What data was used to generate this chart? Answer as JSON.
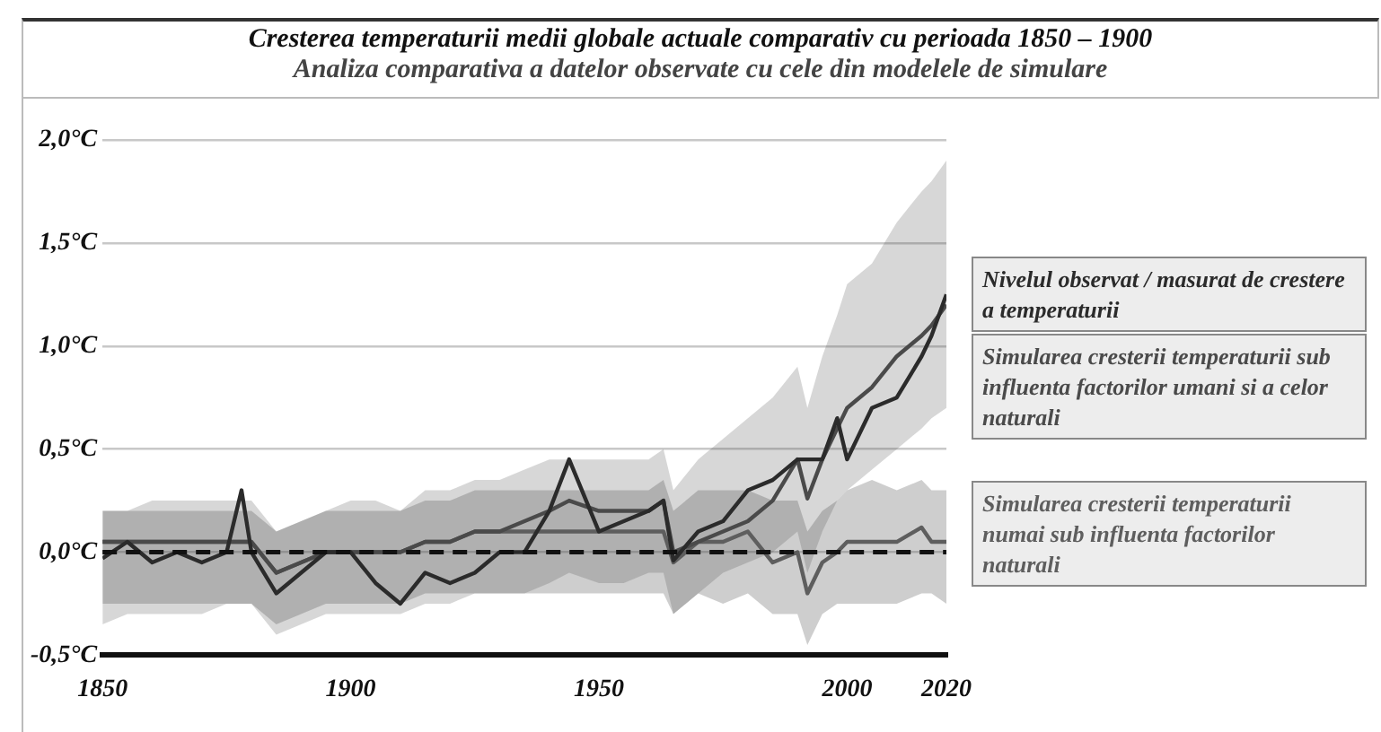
{
  "chart_data": {
    "type": "line",
    "title": "Cresterea temperaturii medii globale actuale comparativ cu perioada 1850 – 1900",
    "subtitle": "Analiza comparativa a datelor observate cu cele din modelele de simulare",
    "x": [
      1850,
      1855,
      1860,
      1865,
      1870,
      1875,
      1878,
      1880,
      1885,
      1890,
      1895,
      1900,
      1905,
      1910,
      1915,
      1920,
      1925,
      1930,
      1935,
      1940,
      1944,
      1950,
      1955,
      1960,
      1963,
      1965,
      1970,
      1975,
      1980,
      1985,
      1990,
      1992,
      1995,
      1998,
      2000,
      2005,
      2010,
      2015,
      2017,
      2020
    ],
    "series": [
      {
        "name": "Nivelul observat / masurat de crestere a temperaturii",
        "color": "#2b2b2b",
        "values": [
          -0.03,
          0.05,
          -0.05,
          0.0,
          -0.05,
          0.0,
          0.3,
          0.0,
          -0.2,
          -0.1,
          0.0,
          0.0,
          -0.15,
          -0.25,
          -0.1,
          -0.15,
          -0.1,
          0.0,
          0.0,
          0.2,
          0.45,
          0.1,
          0.15,
          0.2,
          0.25,
          -0.04,
          0.1,
          0.15,
          0.3,
          0.35,
          0.45,
          0.45,
          0.45,
          0.65,
          0.45,
          0.7,
          0.75,
          0.95,
          1.05,
          1.25
        ]
      },
      {
        "name": "Simularea cresterii temperaturii sub influenta factorilor umani si a celor naturali",
        "color": "#4a4a4a",
        "values": [
          0.05,
          0.05,
          0.05,
          0.05,
          0.05,
          0.05,
          0.05,
          0.05,
          -0.1,
          -0.05,
          0.0,
          0.0,
          0.0,
          0.0,
          0.05,
          0.05,
          0.1,
          0.1,
          0.15,
          0.2,
          0.25,
          0.2,
          0.2,
          0.2,
          0.25,
          0.0,
          0.05,
          0.1,
          0.15,
          0.25,
          0.45,
          0.26,
          0.45,
          0.6,
          0.7,
          0.8,
          0.95,
          1.05,
          1.1,
          1.2
        ],
        "lower": [
          -0.35,
          -0.3,
          -0.3,
          -0.3,
          -0.3,
          -0.25,
          -0.25,
          -0.25,
          -0.4,
          -0.35,
          -0.3,
          -0.3,
          -0.3,
          -0.3,
          -0.25,
          -0.25,
          -0.2,
          -0.2,
          -0.2,
          -0.15,
          -0.1,
          -0.15,
          -0.15,
          -0.1,
          -0.1,
          -0.3,
          -0.2,
          -0.1,
          -0.05,
          0.0,
          0.1,
          -0.1,
          0.1,
          0.25,
          0.3,
          0.4,
          0.5,
          0.6,
          0.65,
          0.7
        ],
        "upper": [
          0.2,
          0.2,
          0.25,
          0.25,
          0.25,
          0.25,
          0.25,
          0.25,
          0.1,
          0.15,
          0.2,
          0.25,
          0.25,
          0.2,
          0.3,
          0.3,
          0.35,
          0.35,
          0.4,
          0.45,
          0.45,
          0.45,
          0.45,
          0.45,
          0.5,
          0.3,
          0.45,
          0.55,
          0.65,
          0.75,
          0.9,
          0.7,
          0.95,
          1.15,
          1.3,
          1.4,
          1.6,
          1.75,
          1.8,
          1.9
        ]
      },
      {
        "name": "Simularea cresterii temperaturii numai sub influenta factorilor naturali",
        "color": "#5e5e5e",
        "values": [
          0.05,
          0.05,
          0.05,
          0.05,
          0.05,
          0.05,
          0.05,
          0.05,
          -0.1,
          -0.05,
          0.0,
          0.0,
          0.0,
          0.0,
          0.05,
          0.05,
          0.1,
          0.1,
          0.1,
          0.1,
          0.1,
          0.1,
          0.1,
          0.1,
          0.1,
          -0.05,
          0.05,
          0.05,
          0.1,
          -0.05,
          0.0,
          -0.2,
          -0.05,
          0.0,
          0.05,
          0.05,
          0.05,
          0.12,
          0.05,
          0.05
        ],
        "lower": [
          -0.25,
          -0.25,
          -0.25,
          -0.25,
          -0.25,
          -0.25,
          -0.25,
          -0.25,
          -0.35,
          -0.3,
          -0.25,
          -0.25,
          -0.25,
          -0.25,
          -0.2,
          -0.2,
          -0.2,
          -0.2,
          -0.2,
          -0.2,
          -0.2,
          -0.2,
          -0.2,
          -0.2,
          -0.2,
          -0.3,
          -0.2,
          -0.25,
          -0.2,
          -0.3,
          -0.3,
          -0.45,
          -0.3,
          -0.25,
          -0.25,
          -0.25,
          -0.25,
          -0.2,
          -0.2,
          -0.25
        ],
        "upper": [
          0.2,
          0.2,
          0.2,
          0.2,
          0.2,
          0.2,
          0.2,
          0.2,
          0.1,
          0.15,
          0.2,
          0.2,
          0.2,
          0.2,
          0.25,
          0.25,
          0.3,
          0.3,
          0.3,
          0.3,
          0.3,
          0.3,
          0.3,
          0.3,
          0.35,
          0.2,
          0.3,
          0.3,
          0.3,
          0.25,
          0.25,
          0.1,
          0.2,
          0.25,
          0.3,
          0.35,
          0.3,
          0.35,
          0.3,
          0.3
        ]
      }
    ],
    "xlim": [
      1850,
      2020
    ],
    "xticks": [
      1850,
      1900,
      1950,
      2000,
      2020
    ],
    "ylim": [
      -0.5,
      2.0
    ],
    "yticks": [
      {
        "value": -0.5,
        "label": "-0,5°C"
      },
      {
        "value": 0,
        "label": "0,0°C"
      },
      {
        "value": 0.5,
        "label": "0,5°C"
      },
      {
        "value": 1.0,
        "label": "1,0°C"
      },
      {
        "value": 1.5,
        "label": "1,5°C"
      },
      {
        "value": 2.0,
        "label": "2,0°C"
      }
    ],
    "ref_lines": [
      {
        "axis": "y",
        "value": 0,
        "line_style": "dashed",
        "color": "#111111"
      }
    ],
    "grid": "y",
    "legend": "right",
    "marker": "none",
    "line_style": "solid"
  }
}
